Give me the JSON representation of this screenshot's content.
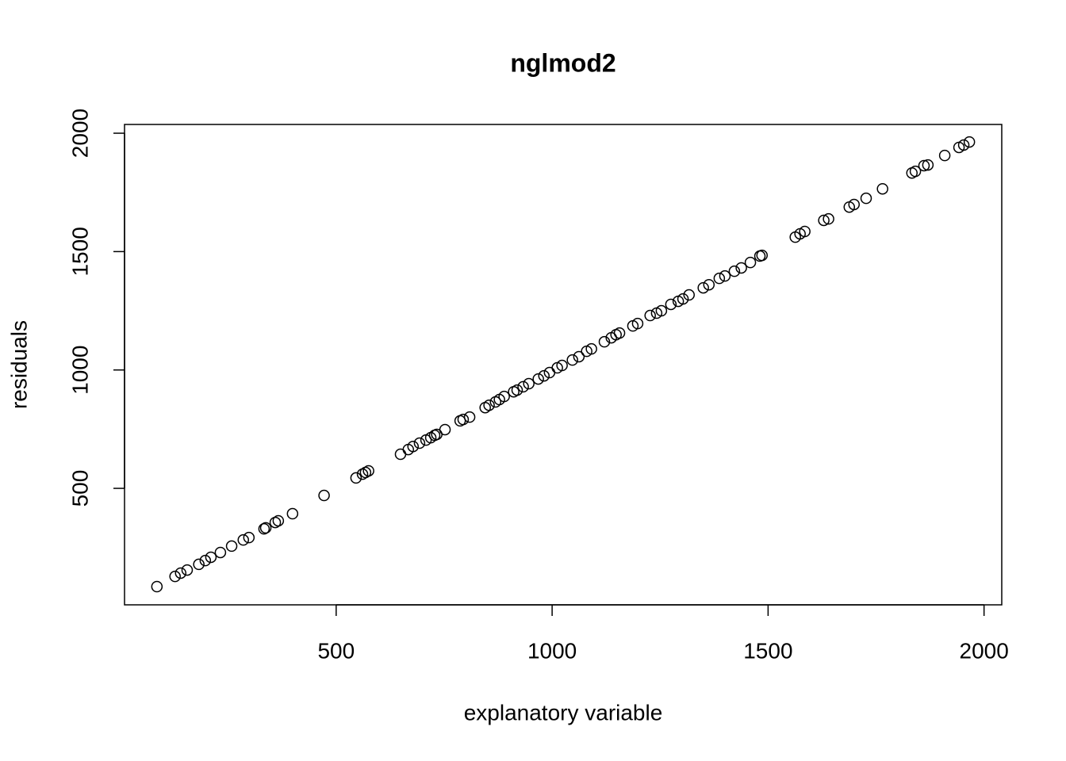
{
  "chart_data": {
    "type": "scatter",
    "title": "nglmod2",
    "x_label": "explanatory variable",
    "y_label": "residuals",
    "xlim": [
      10,
      2041
    ],
    "ylim": [
      8,
      2037
    ],
    "xticks": [
      500,
      1000,
      1500,
      2000
    ],
    "yticks": [
      500,
      1000,
      1500,
      2000
    ],
    "color": "#000000",
    "x": [
      85,
      127,
      140,
      155,
      182,
      197,
      210,
      232,
      258,
      285,
      298,
      333,
      337,
      359,
      366,
      399,
      472,
      546,
      561,
      568,
      575,
      649,
      667,
      678,
      693,
      708,
      719,
      728,
      733,
      752,
      787,
      794,
      809,
      845,
      854,
      869,
      878,
      889,
      911,
      919,
      933,
      946,
      968,
      981,
      994,
      1012,
      1023,
      1047,
      1062,
      1080,
      1091,
      1121,
      1137,
      1148,
      1156,
      1187,
      1198,
      1227,
      1242,
      1253,
      1275,
      1292,
      1303,
      1317,
      1350,
      1363,
      1387,
      1400,
      1422,
      1438,
      1459,
      1481,
      1486,
      1563,
      1574,
      1585,
      1629,
      1640,
      1688,
      1699,
      1727,
      1765,
      1833,
      1841,
      1861,
      1870,
      1909,
      1942,
      1953,
      1966
    ],
    "y": [
      85,
      128,
      142,
      155,
      179,
      195,
      209,
      229,
      256,
      282,
      292,
      329,
      333,
      356,
      363,
      393,
      470,
      544,
      560,
      567,
      574,
      644,
      664,
      677,
      691,
      704,
      714,
      724,
      728,
      748,
      785,
      791,
      801,
      841,
      851,
      865,
      875,
      888,
      908,
      915,
      929,
      942,
      962,
      975,
      989,
      1009,
      1019,
      1042,
      1056,
      1079,
      1089,
      1119,
      1136,
      1149,
      1156,
      1186,
      1196,
      1230,
      1240,
      1250,
      1277,
      1290,
      1300,
      1317,
      1347,
      1360,
      1387,
      1397,
      1417,
      1431,
      1454,
      1481,
      1484,
      1561,
      1575,
      1585,
      1632,
      1638,
      1688,
      1699,
      1725,
      1765,
      1832,
      1839,
      1863,
      1866,
      1906,
      1940,
      1950,
      1963
    ]
  }
}
